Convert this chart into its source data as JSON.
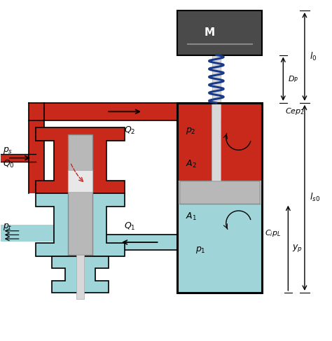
{
  "bg_color": "#ffffff",
  "red_color": "#c8291a",
  "light_blue_color": "#9fd4d8",
  "dark_gray_color": "#4a4a4a",
  "blue_spring_color": "#1a3a8a",
  "silver_color": "#b8b8b8",
  "light_silver": "#d8d8d8",
  "black": "#111111"
}
